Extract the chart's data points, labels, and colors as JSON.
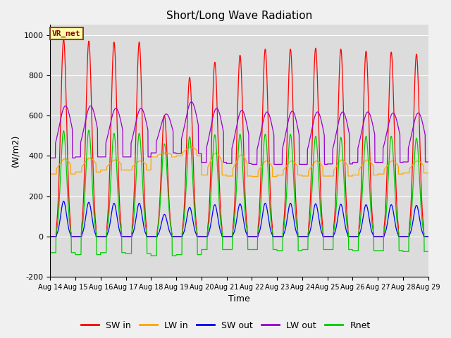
{
  "title": "Short/Long Wave Radiation",
  "xlabel": "Time",
  "ylabel": "(W/m2)",
  "ylim": [
    -200,
    1050
  ],
  "bg_color": "#dcdcdc",
  "label_box": "VR_met",
  "series": {
    "SW_in": {
      "color": "#ff0000",
      "label": "SW in"
    },
    "LW_in": {
      "color": "#ffa500",
      "label": "LW in"
    },
    "SW_out": {
      "color": "#0000ff",
      "label": "SW out"
    },
    "LW_out": {
      "color": "#9900cc",
      "label": "LW out"
    },
    "Rnet": {
      "color": "#00cc00",
      "label": "Rnet"
    }
  },
  "xtick_labels": [
    "Aug 14",
    "Aug 15",
    "Aug 16",
    "Aug 17",
    "Aug 18",
    "Aug 19",
    "Aug 20",
    "Aug 21",
    "Aug 22",
    "Aug 23",
    "Aug 24",
    "Aug 25",
    "Aug 26",
    "Aug 27",
    "Aug 28",
    "Aug 29"
  ],
  "ytick_labels": [
    -200,
    0,
    200,
    400,
    600,
    800,
    1000
  ],
  "n_days": 15,
  "pts_per_day": 144,
  "sw_in_peaks": [
    980,
    970,
    965,
    965,
    600,
    790,
    865,
    900,
    930,
    930,
    935,
    930,
    920,
    915,
    905
  ],
  "lw_in_night": [
    310,
    320,
    330,
    330,
    395,
    400,
    305,
    300,
    298,
    305,
    300,
    300,
    305,
    310,
    315
  ],
  "lw_in_day": [
    385,
    390,
    380,
    375,
    415,
    445,
    415,
    405,
    375,
    375,
    375,
    380,
    380,
    375,
    375
  ],
  "sw_out_peaks": [
    175,
    170,
    165,
    165,
    110,
    145,
    158,
    162,
    165,
    165,
    162,
    160,
    158,
    158,
    155
  ],
  "lw_out_night": [
    390,
    395,
    395,
    395,
    415,
    412,
    368,
    362,
    358,
    358,
    358,
    360,
    368,
    368,
    370
  ],
  "lw_out_day": [
    648,
    648,
    636,
    636,
    608,
    668,
    636,
    626,
    618,
    622,
    618,
    618,
    618,
    613,
    613
  ],
  "rnet_peaks": [
    525,
    528,
    512,
    512,
    460,
    495,
    505,
    508,
    508,
    508,
    498,
    492,
    498,
    498,
    488
  ],
  "rnet_night": [
    -80,
    -90,
    -80,
    -85,
    -95,
    -90,
    -65,
    -65,
    -65,
    -70,
    -65,
    -65,
    -70,
    -70,
    -75
  ]
}
